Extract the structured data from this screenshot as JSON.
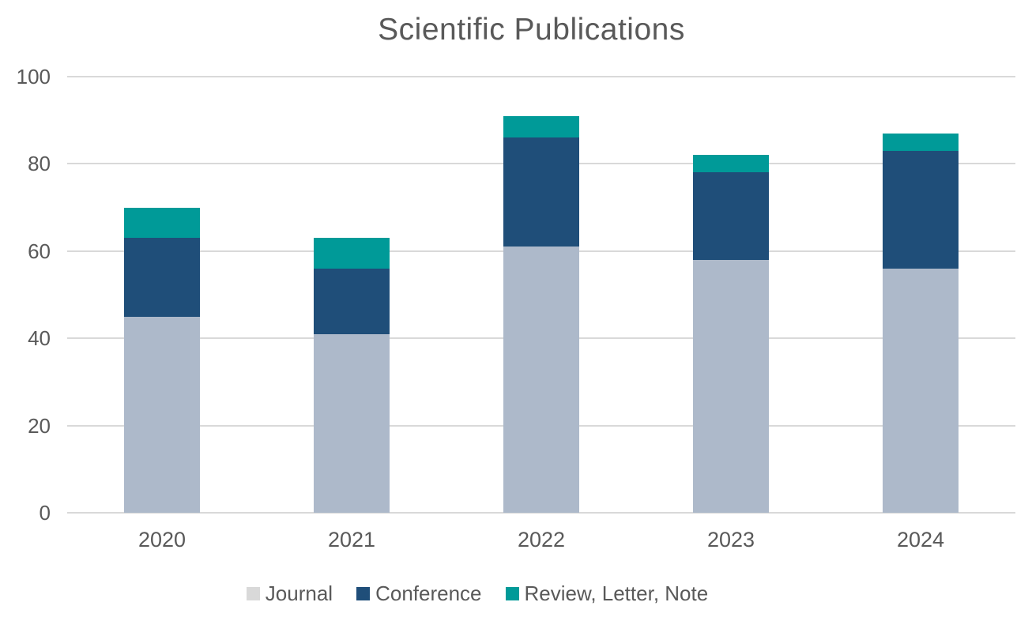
{
  "chart_data": {
    "type": "bar",
    "stacked": true,
    "title": "Scientific Publications",
    "categories": [
      "2020",
      "2021",
      "2022",
      "2023",
      "2024"
    ],
    "series": [
      {
        "name": "Journal",
        "color": "#adb9ca",
        "legend_color": "#d9d9d9",
        "values": [
          45,
          41,
          61,
          58,
          56
        ]
      },
      {
        "name": "Conference",
        "color": "#1f4e79",
        "legend_color": "#1f4e79",
        "values": [
          18,
          15,
          25,
          20,
          27
        ]
      },
      {
        "name": "Review, Letter, Note",
        "color": "#009a98",
        "legend_color": "#009a98",
        "values": [
          7,
          7,
          5,
          4,
          4
        ]
      }
    ],
    "stack_totals": [
      70,
      63,
      91,
      82,
      87
    ],
    "y_axis": {
      "min": 0,
      "max": 100,
      "step": 20,
      "tick_labels": [
        "0",
        "20",
        "40",
        "60",
        "80",
        "100"
      ]
    },
    "x_label": "",
    "y_label": "",
    "grid": true,
    "legend_position": "bottom",
    "colors": {
      "text": "#595959",
      "gridline": "#d9d9d9",
      "background": "#ffffff"
    }
  }
}
